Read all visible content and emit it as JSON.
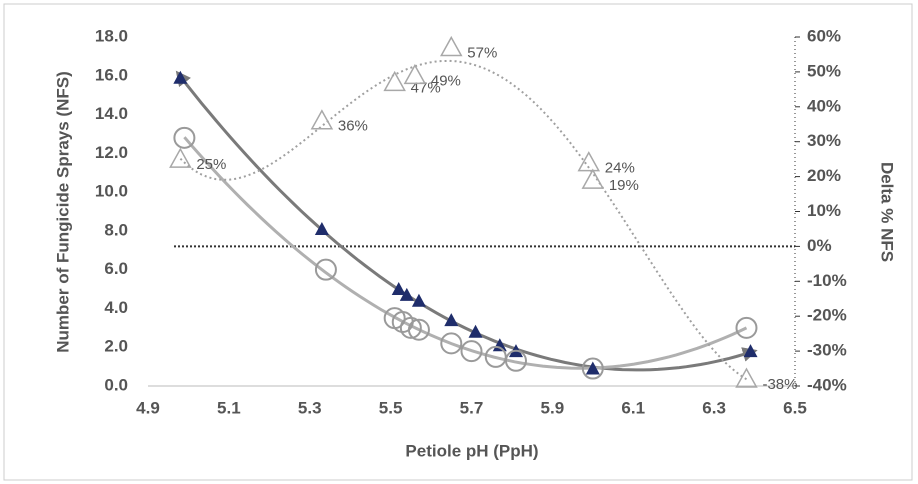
{
  "chart_data": {
    "type": "scatter",
    "x_label": "Petiole pH (PpH)",
    "y_label": "Number of Fungicide Sprays (NFS)",
    "y2_label": "Delta % NFS",
    "xlim": [
      4.9,
      6.5
    ],
    "xticks": [
      4.9,
      5.1,
      5.3,
      5.5,
      5.7,
      5.9,
      6.1,
      6.3,
      6.5
    ],
    "ylim": [
      0,
      18
    ],
    "yticks": [
      {
        "value": 0,
        "label": "0.0"
      },
      {
        "value": 2,
        "label": "2.0"
      },
      {
        "value": 4,
        "label": "4.0"
      },
      {
        "value": 6,
        "label": "6.0"
      },
      {
        "value": 8,
        "label": "8.0"
      },
      {
        "value": 10,
        "label": "10.0"
      },
      {
        "value": 12,
        "label": "12.0"
      },
      {
        "value": 14,
        "label": "14.0"
      },
      {
        "value": 16,
        "label": "16.0"
      },
      {
        "value": 18,
        "label": "18.0"
      }
    ],
    "y2lim": [
      -40,
      60
    ],
    "y2ticks": [
      {
        "value": -40,
        "label": "-40%"
      },
      {
        "value": -30,
        "label": "-30%"
      },
      {
        "value": -20,
        "label": "-20%"
      },
      {
        "value": -10,
        "label": "-10%"
      },
      {
        "value": 0,
        "label": "0%"
      },
      {
        "value": 10,
        "label": "10%"
      },
      {
        "value": 20,
        "label": "20%"
      },
      {
        "value": 30,
        "label": "30%"
      },
      {
        "value": 40,
        "label": "40%"
      },
      {
        "value": 50,
        "label": "50%"
      },
      {
        "value": 60,
        "label": "60%"
      }
    ],
    "y2_reference": 0,
    "series": [
      {
        "marker": "triangle-filled",
        "color": "#1f2d6b",
        "trend_color": "#7a7a7a",
        "trend_degree": 2,
        "trend_style": "arrow",
        "x": [
          4.98,
          5.33,
          5.52,
          5.54,
          5.57,
          5.65,
          5.71,
          5.77,
          5.81,
          6.0,
          6.39
        ],
        "values": [
          15.9,
          8.1,
          5.0,
          4.7,
          4.4,
          3.4,
          2.8,
          2.1,
          1.8,
          0.9,
          1.8
        ]
      },
      {
        "marker": "circle-open",
        "color": "#9a9a9a",
        "trend_color": "#b0b0b0",
        "trend_degree": 2,
        "trend_style": "solid",
        "x": [
          4.99,
          5.34,
          5.51,
          5.53,
          5.55,
          5.57,
          5.65,
          5.7,
          5.76,
          5.81,
          6.0,
          6.38
        ],
        "values": [
          12.8,
          6.0,
          3.5,
          3.3,
          3.0,
          2.9,
          2.2,
          1.8,
          1.5,
          1.3,
          0.9,
          3.0
        ]
      },
      {
        "marker": "triangle-open",
        "color": "#a8a8a8",
        "trend_color": "#a0a0a0",
        "trend_degree": 4,
        "trend_style": "dotted",
        "axis": "y2",
        "x": [
          4.98,
          5.33,
          5.51,
          5.56,
          5.65,
          5.99,
          6.0,
          6.38
        ],
        "values": [
          25,
          36,
          47,
          49,
          57,
          24,
          19,
          -38
        ],
        "value_labels": [
          "25%",
          "36%",
          "47%",
          "49%",
          "57%",
          "24%",
          "19%",
          "-38%"
        ]
      }
    ]
  }
}
